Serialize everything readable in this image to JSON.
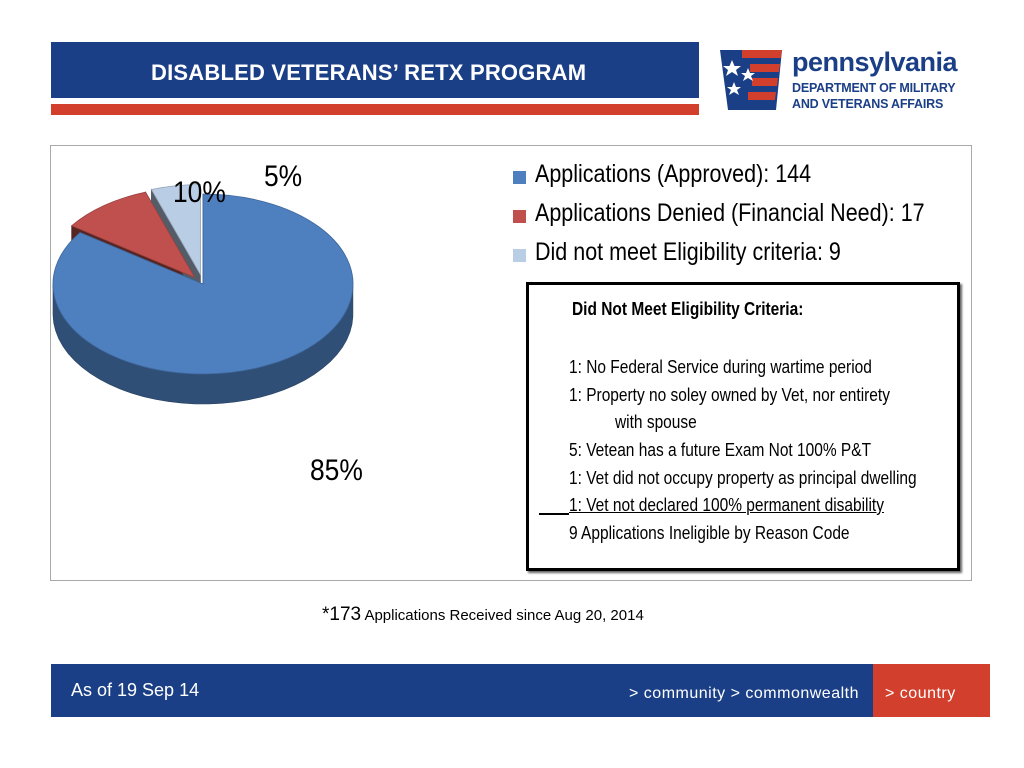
{
  "header": {
    "title": "DISABLED VETERANS’ RETX PROGRAM"
  },
  "logo": {
    "word": "pennsylvania",
    "line1": "DEPARTMENT OF MILITARY",
    "line2": "AND VETERANS AFFAIRS",
    "icon": "pa-flag-keystone-icon"
  },
  "chart_data": {
    "type": "pie",
    "style": "3d-exploded",
    "series": [
      {
        "name": "Applications (Approved)",
        "label": "Applications (Approved):  144",
        "value": 144,
        "percent_label": "85%",
        "color": "#4e7fbf"
      },
      {
        "name": "Applications Denied (Financial Need)",
        "label": "Applications Denied (Financial Need):  17",
        "value": 17,
        "percent_label": "10%",
        "color": "#c0504d"
      },
      {
        "name": "Did not meet Eligibility criteria",
        "label": "Did not meet Eligibility criteria:  9",
        "value": 9,
        "percent_label": "5%",
        "color": "#b9cde5"
      }
    ],
    "legend_position": "top-right"
  },
  "criteria": {
    "title": "Did Not Meet Eligibility Criteria:",
    "lines": [
      "1: No Federal Service during wartime period",
      "1: Property no soley owned by Vet, nor entirety",
      "with spouse",
      "5: Vetean has a future  Exam Not 100% P&T",
      "1: Vet did not occupy property as principal dwelling",
      "1: Vet not declared 100% permanent disability",
      "9  Applications Ineligible by Reason Code"
    ]
  },
  "note": {
    "star_count": "*173",
    "text": " Applications Received since Aug 20, 2014"
  },
  "footer": {
    "date": "As of 19 Sep 14",
    "tagline": "> community > commonwealth",
    "country": "> country"
  },
  "colors": {
    "navy": "#1b3f86",
    "red": "#d2402d"
  }
}
